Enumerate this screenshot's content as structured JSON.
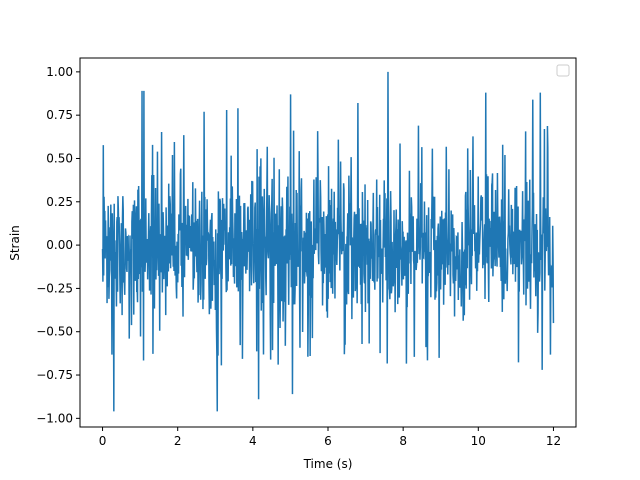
{
  "chart_data": {
    "type": "line",
    "title": "",
    "xlabel": "Time (s)",
    "ylabel": "Strain",
    "xlim": [
      -0.6,
      12.6
    ],
    "ylim": [
      -1.05,
      1.08
    ],
    "x_ticks": [
      0,
      2,
      4,
      6,
      8,
      10,
      12
    ],
    "x_tick_labels": [
      "0",
      "2",
      "4",
      "6",
      "8",
      "10",
      "12"
    ],
    "y_ticks": [
      -1.0,
      -0.75,
      -0.5,
      -0.25,
      0.0,
      0.25,
      0.5,
      0.75,
      1.0
    ],
    "y_tick_labels": [
      "−1.00",
      "−0.75",
      "−0.50",
      "−0.25",
      "0.00",
      "0.25",
      "0.50",
      "0.75",
      "1.00"
    ],
    "grid": false,
    "legend": {
      "position": "top-right",
      "entries": []
    },
    "series": [
      {
        "color": "#1f77b4",
        "x_range": [
          0,
          12
        ],
        "sample_count": 1200,
        "envelope": {
          "typical_min": -0.55,
          "typical_max": 0.55
        },
        "peaks": [
          {
            "x": 0.3,
            "y": -0.96
          },
          {
            "x": 1.05,
            "y": 0.89
          },
          {
            "x": 1.1,
            "y": 0.89
          },
          {
            "x": 2.7,
            "y": 0.77
          },
          {
            "x": 3.05,
            "y": -0.96
          },
          {
            "x": 3.3,
            "y": 0.78
          },
          {
            "x": 3.6,
            "y": 0.79
          },
          {
            "x": 4.15,
            "y": -0.89
          },
          {
            "x": 5.0,
            "y": 0.87
          },
          {
            "x": 5.05,
            "y": -0.86
          },
          {
            "x": 6.8,
            "y": 0.82
          },
          {
            "x": 7.6,
            "y": 1.0
          },
          {
            "x": 10.2,
            "y": 0.88
          },
          {
            "x": 11.45,
            "y": 0.84
          },
          {
            "x": 11.65,
            "y": 0.88
          },
          {
            "x": 11.7,
            "y": -0.72
          },
          {
            "x": 12.0,
            "y": -0.45
          }
        ]
      }
    ]
  }
}
